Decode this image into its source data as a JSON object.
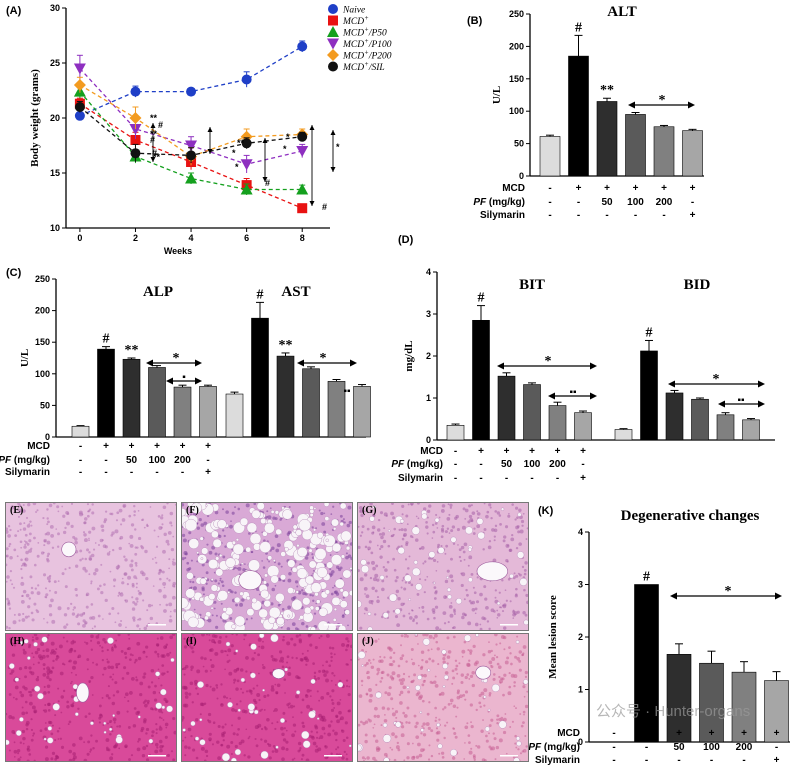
{
  "colors": {
    "naive": "#1f3fc7",
    "p0": "#e81212",
    "p50": "#14a01e",
    "p100": "#8e2fc0",
    "p200": "#f39b20",
    "sil": "#111111",
    "bar0": "#dcdcdc",
    "bar1": "#000000",
    "bar2": "#2e2e2e",
    "bar3": "#5a5a5a",
    "bar4": "#808080",
    "bar5": "#a6a6a6"
  },
  "panel_a": {
    "label": "(A)",
    "chart_data": {
      "type": "line",
      "title": "",
      "xlabel": "Weeks",
      "ylabel": "Body weight (grams)",
      "x": [
        0,
        2,
        4,
        6,
        8
      ],
      "xlim": [
        -0.5,
        9
      ],
      "ylim": [
        10,
        30
      ],
      "yticks": [
        "10",
        "15",
        "20",
        "25",
        "30"
      ],
      "xticks": [
        "0",
        "2",
        "4",
        "6",
        "8"
      ],
      "legend": "top-right",
      "series": [
        {
          "name": "Naive",
          "sup": "",
          "rest": "",
          "key": "naive",
          "marker": "circle",
          "values": [
            20.2,
            22.4,
            22.4,
            23.5,
            26.5
          ],
          "err": [
            0.3,
            0.5,
            0.3,
            0.7,
            0.5
          ]
        },
        {
          "name": "MCD",
          "sup": "+",
          "rest": "",
          "key": "p0",
          "marker": "square",
          "values": [
            21.3,
            18.0,
            16.0,
            13.9,
            11.8
          ],
          "err": [
            0.5,
            0.7,
            0.7,
            0.6,
            0.3
          ]
        },
        {
          "name": "MCD",
          "sup": "+",
          "rest": "/P50",
          "key": "p50",
          "marker": "triangle",
          "values": [
            22.4,
            16.5,
            14.5,
            13.5,
            13.5
          ],
          "err": [
            0.6,
            0.6,
            0.5,
            0.5,
            0.4
          ]
        },
        {
          "name": "MCD",
          "sup": "+",
          "rest": "/P100",
          "key": "p100",
          "marker": "tridown",
          "values": [
            24.5,
            19.0,
            17.5,
            15.8,
            17.0
          ],
          "err": [
            1.2,
            0.9,
            0.8,
            0.8,
            0.6
          ]
        },
        {
          "name": "MCD",
          "sup": "+",
          "rest": "/P200",
          "key": "p200",
          "marker": "diamond",
          "values": [
            23.0,
            20.0,
            16.5,
            18.3,
            18.5
          ],
          "err": [
            0.7,
            1.0,
            0.8,
            0.7,
            0.5
          ]
        },
        {
          "name": "MCD",
          "sup": "+",
          "rest": "/SIL",
          "key": "sil",
          "marker": "circle",
          "values": [
            21.0,
            16.8,
            16.6,
            17.7,
            18.3
          ],
          "err": [
            0.5,
            0.8,
            0.7,
            0.5,
            0.4
          ]
        }
      ]
    },
    "annotations": [
      "**",
      "**",
      "**",
      "#",
      "#",
      "#",
      "**",
      "*",
      "*",
      "#",
      "*",
      "*",
      "#",
      "*"
    ]
  },
  "panel_b": {
    "label": "(B)",
    "chart_data": {
      "type": "bar",
      "title": "ALT",
      "ylabel": "U/L",
      "ylim": [
        0,
        250
      ],
      "yticks": [
        "0",
        "50",
        "100",
        "150",
        "200",
        "250"
      ],
      "values": [
        61,
        185,
        115,
        95,
        76,
        70
      ],
      "err": [
        2,
        32,
        5,
        3,
        2,
        2
      ],
      "sig": [
        "",
        "#",
        "**",
        "",
        "",
        ""
      ],
      "bracket": "*"
    }
  },
  "panel_c": {
    "label": "(C)",
    "chart_data": [
      {
        "type": "bar",
        "title": "ALP",
        "ylabel": "U/L",
        "ylim": [
          0,
          250
        ],
        "yticks": [
          "0",
          "50",
          "100",
          "150",
          "200",
          "250"
        ],
        "values": [
          17,
          139,
          123,
          110,
          79,
          80
        ],
        "err": [
          1,
          4,
          2,
          3,
          3,
          2
        ],
        "sig": [
          "",
          "#",
          "**",
          "",
          "",
          ""
        ],
        "bracket_outer": "*",
        "bracket_inner": "▪"
      },
      {
        "type": "bar",
        "title": "AST",
        "ylabel": "U/L",
        "ylim": [
          0,
          250
        ],
        "values": [
          68,
          188,
          128,
          108,
          88,
          80
        ],
        "err": [
          3,
          25,
          5,
          3,
          3,
          3
        ],
        "sig": [
          "",
          "#",
          "**",
          "",
          "",
          ""
        ],
        "bracket_outer": "*",
        "bracket_inner": "▪▪"
      }
    ]
  },
  "panel_d": {
    "label": "(D)",
    "chart_data": [
      {
        "type": "bar",
        "title": "BIT",
        "ylabel": "mg/dL",
        "ylim": [
          0,
          4
        ],
        "yticks": [
          "0",
          "1",
          "2",
          "3",
          "4"
        ],
        "values": [
          0.35,
          2.85,
          1.52,
          1.32,
          0.82,
          0.65
        ],
        "err": [
          0.03,
          0.35,
          0.08,
          0.04,
          0.08,
          0.04
        ],
        "sig": [
          "",
          "#",
          "",
          "",
          "",
          ""
        ],
        "bracket_outer": "*",
        "bracket_inner": "▪▪"
      },
      {
        "type": "bar",
        "title": "BID",
        "ylabel": "mg/dL",
        "ylim": [
          0,
          4
        ],
        "values": [
          0.25,
          2.12,
          1.12,
          0.97,
          0.6,
          0.48
        ],
        "err": [
          0.02,
          0.25,
          0.06,
          0.03,
          0.05,
          0.03
        ],
        "sig": [
          "",
          "#",
          "",
          "",
          "",
          ""
        ],
        "bracket_outer": "*",
        "bracket_inner": "▪▪"
      }
    ]
  },
  "panel_k": {
    "label": "(K)",
    "chart_data": {
      "type": "bar",
      "title": "Degenerative changes",
      "ylabel": "Mean lesion score",
      "ylim": [
        0,
        4
      ],
      "yticks": [
        "0",
        "1",
        "2",
        "3",
        "4"
      ],
      "values": [
        0,
        3.0,
        1.67,
        1.5,
        1.33,
        1.17
      ],
      "err": [
        0,
        0,
        0.2,
        0.23,
        0.2,
        0.17
      ],
      "sig": [
        "",
        "#",
        "",
        "",
        "",
        ""
      ],
      "bracket": "*"
    }
  },
  "treatment_table": {
    "rows": [
      {
        "label": "MCD",
        "italic": false,
        "cells": [
          "-",
          "+",
          "+",
          "+",
          "+",
          "+"
        ]
      },
      {
        "label": "PF",
        "suffix": " (mg/kg)",
        "italic": true,
        "cells": [
          "-",
          "-",
          "50",
          "100",
          "200",
          "-"
        ]
      },
      {
        "label": "Silymarin",
        "italic": false,
        "cells": [
          "-",
          "-",
          "-",
          "-",
          "-",
          "+"
        ]
      }
    ]
  },
  "histology": {
    "panels": [
      {
        "label": "(E)",
        "scheme": "normal"
      },
      {
        "label": "(F)",
        "scheme": "vacuolar"
      },
      {
        "label": "(G)",
        "scheme": "mild"
      },
      {
        "label": "(H)",
        "scheme": "pink"
      },
      {
        "label": "(I)",
        "scheme": "pink"
      },
      {
        "label": "(J)",
        "scheme": "light"
      }
    ]
  },
  "watermark": "公众号 · Hunter-organs"
}
